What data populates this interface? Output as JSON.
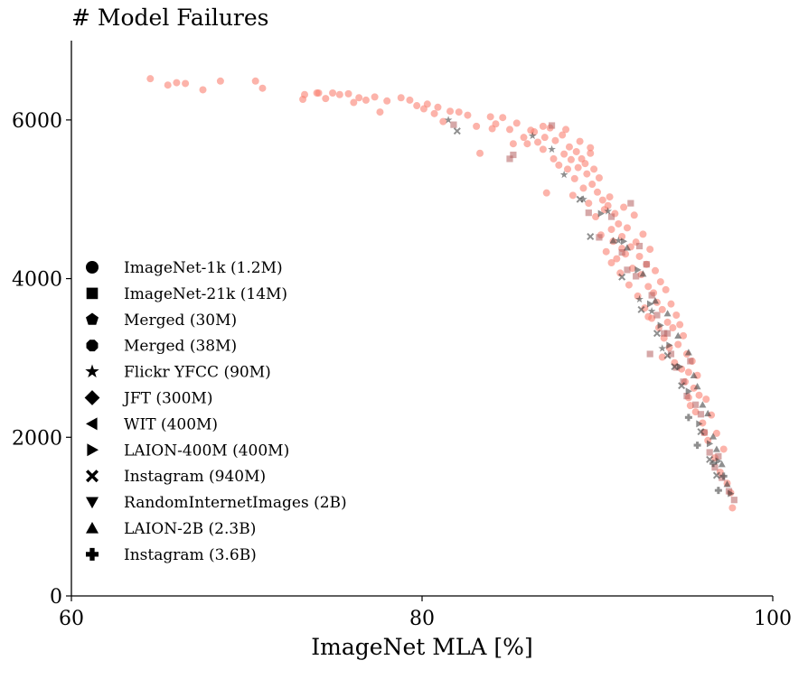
{
  "chart_data": {
    "type": "scatter",
    "title": "# Model Failures",
    "xlabel": "ImageNet MLA [%]",
    "ylabel": "",
    "xlim": [
      60,
      100
    ],
    "ylim": [
      0,
      7000
    ],
    "xticks": [
      60,
      80,
      100
    ],
    "yticks": [
      0,
      2000,
      4000,
      6000
    ],
    "grid": false,
    "legend_position": "left",
    "colors": {
      "imagenet_1k_points": "#fa8072",
      "dark_points": "#333333",
      "square_points": "#b56060"
    },
    "legend": [
      {
        "label": "ImageNet-1k (1.2M)",
        "marker": "circle"
      },
      {
        "label": "ImageNet-21k (14M)",
        "marker": "square"
      },
      {
        "label": "Merged (30M)",
        "marker": "pentagon"
      },
      {
        "label": "Merged (38M)",
        "marker": "octagon"
      },
      {
        "label": "Flickr YFCC (90M)",
        "marker": "star"
      },
      {
        "label": "JFT (300M)",
        "marker": "diamond"
      },
      {
        "label": "WIT (400M)",
        "marker": "triangle-left"
      },
      {
        "label": "LAION-400M (400M)",
        "marker": "triangle-right"
      },
      {
        "label": "Instagram (940M)",
        "marker": "x-filled"
      },
      {
        "label": "RandomInternetImages (2B)",
        "marker": "triangle-down"
      },
      {
        "label": "LAION-2B (2.3B)",
        "marker": "triangle-up"
      },
      {
        "label": "Instagram (3.6B)",
        "marker": "plus-filled"
      }
    ],
    "series": [
      {
        "marker": "circle",
        "color": "#fa8072",
        "points": [
          [
            64.5,
            6520
          ],
          [
            65.5,
            6440
          ],
          [
            66.0,
            6470
          ],
          [
            66.5,
            6460
          ],
          [
            67.5,
            6380
          ],
          [
            68.5,
            6490
          ],
          [
            70.5,
            6490
          ],
          [
            70.9,
            6400
          ],
          [
            73.2,
            6260
          ],
          [
            73.3,
            6320
          ],
          [
            74.0,
            6340
          ],
          [
            74.1,
            6340
          ],
          [
            74.5,
            6270
          ],
          [
            74.9,
            6340
          ],
          [
            75.3,
            6320
          ],
          [
            75.8,
            6330
          ],
          [
            76.1,
            6220
          ],
          [
            76.4,
            6280
          ],
          [
            76.8,
            6250
          ],
          [
            77.3,
            6290
          ],
          [
            77.6,
            6100
          ],
          [
            78.0,
            6240
          ],
          [
            78.8,
            6280
          ],
          [
            79.3,
            6250
          ],
          [
            79.7,
            6180
          ],
          [
            80.1,
            6140
          ],
          [
            80.3,
            6200
          ],
          [
            80.7,
            6080
          ],
          [
            80.9,
            6160
          ],
          [
            81.2,
            5980
          ],
          [
            81.6,
            6110
          ],
          [
            82.1,
            6100
          ],
          [
            82.6,
            6060
          ],
          [
            83.1,
            5920
          ],
          [
            83.3,
            5580
          ],
          [
            83.9,
            6040
          ],
          [
            84.0,
            5890
          ],
          [
            84.2,
            5950
          ],
          [
            84.6,
            6030
          ],
          [
            85.0,
            5880
          ],
          [
            85.4,
            5960
          ],
          [
            85.8,
            5780
          ],
          [
            86.0,
            5700
          ],
          [
            86.2,
            5870
          ],
          [
            86.4,
            5850
          ],
          [
            86.6,
            5720
          ],
          [
            86.9,
            5630
          ],
          [
            87.0,
            5780
          ],
          [
            87.1,
            5080
          ],
          [
            87.3,
            5900
          ],
          [
            87.5,
            5510
          ],
          [
            87.6,
            5740
          ],
          [
            87.8,
            5430
          ],
          [
            88.0,
            5810
          ],
          [
            88.1,
            5570
          ],
          [
            88.3,
            5380
          ],
          [
            88.4,
            5660
          ],
          [
            88.5,
            5500
          ],
          [
            88.7,
            5260
          ],
          [
            88.8,
            5600
          ],
          [
            88.9,
            5400
          ],
          [
            89.0,
            5730
          ],
          [
            89.1,
            5510
          ],
          [
            89.2,
            5140
          ],
          [
            89.3,
            5450
          ],
          [
            89.4,
            5320
          ],
          [
            89.5,
            4950
          ],
          [
            89.6,
            5580
          ],
          [
            89.7,
            5190
          ],
          [
            89.8,
            5380
          ],
          [
            89.9,
            4780
          ],
          [
            90.0,
            5090
          ],
          [
            90.1,
            5270
          ],
          [
            90.2,
            4550
          ],
          [
            90.3,
            4990
          ],
          [
            90.4,
            4870
          ],
          [
            90.5,
            4340
          ],
          [
            90.6,
            4920
          ],
          [
            90.7,
            5030
          ],
          [
            90.8,
            4620
          ],
          [
            90.9,
            4470
          ],
          [
            91.0,
            4820
          ],
          [
            91.1,
            4250
          ],
          [
            91.2,
            4690
          ],
          [
            91.3,
            4070
          ],
          [
            91.4,
            4530
          ],
          [
            91.5,
            4900
          ],
          [
            91.6,
            4310
          ],
          [
            91.7,
            4640
          ],
          [
            91.8,
            3920
          ],
          [
            91.9,
            4400
          ],
          [
            92.0,
            4130
          ],
          [
            92.1,
            4800
          ],
          [
            92.2,
            4460
          ],
          [
            92.3,
            3780
          ],
          [
            92.4,
            4280
          ],
          [
            92.5,
            4050
          ],
          [
            92.6,
            4560
          ],
          [
            92.7,
            3630
          ],
          [
            92.8,
            4180
          ],
          [
            92.9,
            3900
          ],
          [
            93.0,
            4370
          ],
          [
            93.1,
            3500
          ],
          [
            93.2,
            3820
          ],
          [
            93.3,
            4100
          ],
          [
            93.4,
            3700
          ],
          [
            93.5,
            3380
          ],
          [
            93.6,
            3960
          ],
          [
            93.7,
            3610
          ],
          [
            93.8,
            3250
          ],
          [
            93.9,
            3860
          ],
          [
            94.0,
            3450
          ],
          [
            94.1,
            3130
          ],
          [
            94.2,
            3680
          ],
          [
            94.3,
            3380
          ],
          [
            94.4,
            2940
          ],
          [
            94.5,
            3540
          ],
          [
            94.6,
            3170
          ],
          [
            94.7,
            3420
          ],
          [
            94.8,
            2860
          ],
          [
            94.9,
            3280
          ],
          [
            95.0,
            2700
          ],
          [
            95.1,
            3050
          ],
          [
            95.2,
            2820
          ],
          [
            95.3,
            2400
          ],
          [
            95.4,
            2960
          ],
          [
            95.5,
            2620
          ],
          [
            95.6,
            2320
          ],
          [
            95.7,
            2780
          ],
          [
            95.8,
            2530
          ],
          [
            96.0,
            2180
          ],
          [
            96.2,
            2480
          ],
          [
            96.3,
            1960
          ],
          [
            96.5,
            2280
          ],
          [
            96.7,
            1740
          ],
          [
            96.8,
            2050
          ],
          [
            97.0,
            1560
          ],
          [
            97.2,
            1850
          ],
          [
            97.4,
            1420
          ],
          [
            97.6,
            1300
          ],
          [
            97.7,
            1110
          ],
          [
            86.9,
            5920
          ],
          [
            88.2,
            5880
          ],
          [
            89.6,
            5650
          ],
          [
            85.2,
            5700
          ],
          [
            88.6,
            5050
          ],
          [
            90.8,
            4200
          ],
          [
            92.9,
            3520
          ],
          [
            93.7,
            3010
          ],
          [
            95.2,
            2500
          ],
          [
            96.1,
            2060
          ],
          [
            91.4,
            4380
          ]
        ]
      },
      {
        "marker": "square",
        "color": "#b56060",
        "points": [
          [
            81.8,
            5940
          ],
          [
            85.0,
            5510
          ],
          [
            85.2,
            5560
          ],
          [
            87.4,
            5930
          ],
          [
            89.5,
            4830
          ],
          [
            90.1,
            4520
          ],
          [
            90.8,
            4780
          ],
          [
            91.4,
            4330
          ],
          [
            91.7,
            4110
          ],
          [
            91.9,
            4950
          ],
          [
            92.4,
            4410
          ],
          [
            92.8,
            4180
          ],
          [
            93.1,
            3790
          ],
          [
            93.4,
            3540
          ],
          [
            93.8,
            3310
          ],
          [
            94.2,
            3050
          ],
          [
            94.5,
            2880
          ],
          [
            94.9,
            2700
          ],
          [
            95.1,
            2520
          ],
          [
            95.6,
            2410
          ],
          [
            95.9,
            2290
          ],
          [
            96.1,
            2060
          ],
          [
            96.4,
            1810
          ],
          [
            96.7,
            1620
          ],
          [
            97.1,
            1490
          ],
          [
            97.5,
            1320
          ],
          [
            97.8,
            1210
          ],
          [
            95.3,
            2960
          ],
          [
            93.0,
            3050
          ],
          [
            92.2,
            4030
          ],
          [
            94.0,
            3310
          ],
          [
            96.9,
            1760
          ]
        ]
      },
      {
        "marker": "star",
        "color": "#333333",
        "points": [
          [
            81.5,
            6000
          ],
          [
            86.3,
            5800
          ],
          [
            87.4,
            5630
          ],
          [
            88.1,
            5310
          ],
          [
            89.2,
            5000
          ],
          [
            90.6,
            4850
          ],
          [
            91.2,
            4480
          ],
          [
            92.4,
            3740
          ],
          [
            93.1,
            3590
          ],
          [
            93.7,
            3120
          ]
        ]
      },
      {
        "marker": "triangle-right",
        "color": "#333333",
        "points": [
          [
            90.2,
            4820
          ],
          [
            91.5,
            4470
          ],
          [
            92.3,
            4110
          ],
          [
            93.0,
            3680
          ],
          [
            93.6,
            3410
          ],
          [
            94.1,
            3160
          ],
          [
            94.7,
            2890
          ],
          [
            95.2,
            2580
          ],
          [
            95.8,
            2170
          ],
          [
            96.4,
            1920
          ],
          [
            96.9,
            1700
          ],
          [
            97.6,
            1290
          ]
        ]
      },
      {
        "marker": "triangle-up",
        "color": "#333333",
        "points": [
          [
            90.9,
            4480
          ],
          [
            91.7,
            4390
          ],
          [
            92.6,
            4060
          ],
          [
            93.3,
            3720
          ],
          [
            94.0,
            3560
          ],
          [
            94.6,
            3280
          ],
          [
            95.2,
            3070
          ],
          [
            95.7,
            2640
          ],
          [
            96.0,
            2410
          ],
          [
            96.3,
            2300
          ],
          [
            96.6,
            2010
          ],
          [
            96.8,
            1850
          ],
          [
            97.1,
            1660
          ],
          [
            97.4,
            1410
          ],
          [
            95.5,
            2780
          ]
        ]
      },
      {
        "marker": "x-filled",
        "color": "#333333",
        "points": [
          [
            82.0,
            5860
          ],
          [
            89.0,
            5000
          ],
          [
            89.6,
            4530
          ],
          [
            91.4,
            4020
          ],
          [
            92.5,
            3610
          ],
          [
            93.4,
            3310
          ],
          [
            94.0,
            3030
          ],
          [
            94.4,
            2890
          ],
          [
            94.8,
            2650
          ],
          [
            95.9,
            2070
          ],
          [
            96.4,
            1720
          ],
          [
            96.8,
            1520
          ]
        ]
      },
      {
        "marker": "plus-filled",
        "color": "#333333",
        "points": [
          [
            95.2,
            2250
          ],
          [
            95.7,
            1900
          ],
          [
            96.6,
            1670
          ],
          [
            96.9,
            1330
          ],
          [
            97.2,
            1510
          ]
        ]
      }
    ]
  }
}
